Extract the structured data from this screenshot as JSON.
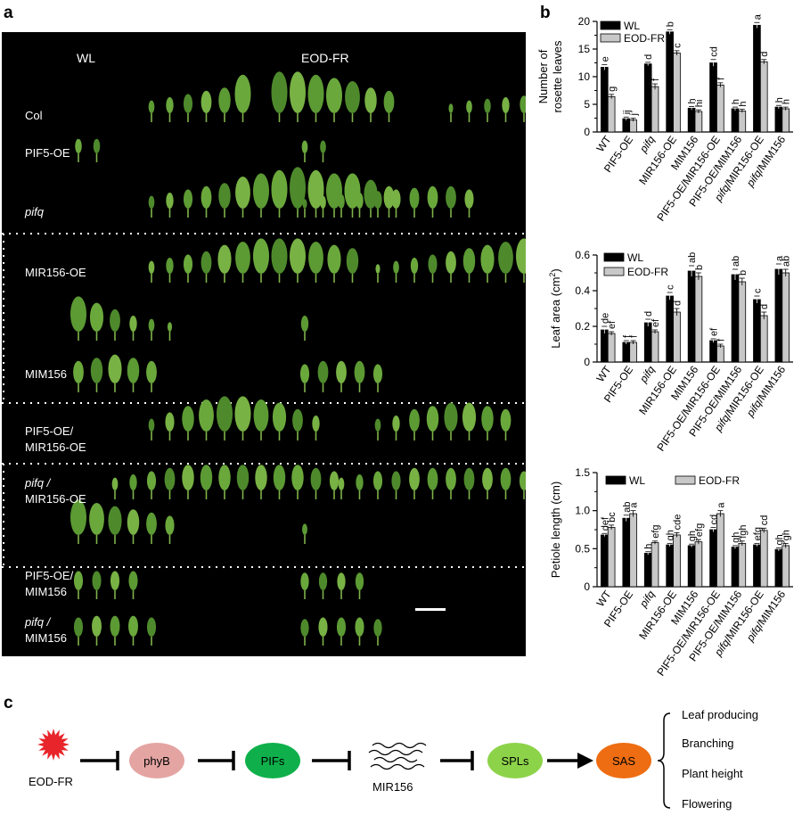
{
  "panels": {
    "a": "a",
    "b": "b",
    "c": "c"
  },
  "photo": {
    "col_wl": "WL",
    "col_eod": "EOD-FR",
    "rows": [
      {
        "lines": [
          "Col"
        ],
        "italic": false
      },
      {
        "lines": [
          "PIF5-OE"
        ],
        "italic": false
      },
      {
        "lines": [
          "pifq"
        ],
        "italic": true
      },
      {
        "lines": [
          "MIR156-OE"
        ],
        "italic": false
      },
      {
        "lines": [
          "MIM156"
        ],
        "italic": false
      },
      {
        "lines": [
          "PIF5-OE/",
          "MIR156-OE"
        ],
        "italic": false
      },
      {
        "lines": [
          "pifq /",
          "MIR156-OE"
        ],
        "italic": "first"
      },
      {
        "lines": [
          "PIF5-OE/",
          "MIM156"
        ],
        "italic": false
      },
      {
        "lines": [
          "pifq /",
          "MIM156"
        ],
        "italic": "first"
      }
    ],
    "leaves": [
      {
        "y": 125,
        "wl": [
          4,
          5,
          6,
          7,
          8,
          9,
          11,
          12,
          13,
          14,
          15,
          16,
          17
        ],
        "wl_sz": [
          8,
          10,
          12,
          14,
          16,
          24,
          26,
          26,
          24,
          22,
          20,
          16,
          14
        ],
        "eod": [
          8,
          9,
          10,
          11,
          12,
          13,
          14,
          15,
          16
        ],
        "eod_sz": [
          6,
          8,
          9,
          10,
          11,
          12,
          13,
          13,
          12
        ]
      },
      {
        "y": 170,
        "wl": [
          0,
          1
        ],
        "wl_sz": [
          9,
          9
        ],
        "eod": [
          0,
          1
        ],
        "eod_sz": [
          8,
          8
        ]
      },
      {
        "y": 232,
        "wl": [
          4,
          5,
          6,
          7,
          8,
          9,
          10,
          11,
          12,
          13,
          14,
          15,
          16,
          17
        ],
        "wl_sz": [
          8,
          10,
          12,
          14,
          16,
          20,
          22,
          24,
          26,
          24,
          22,
          22,
          18,
          14
        ],
        "eod": [
          0,
          1,
          2,
          3,
          4,
          5,
          6,
          7,
          8,
          9
        ],
        "eod_sz": [
          6,
          8,
          9,
          10,
          11,
          12,
          13,
          14,
          14,
          12
        ]
      },
      {
        "y": 305,
        "wl": [
          4,
          5,
          6,
          7,
          8,
          9,
          10,
          11,
          12,
          13,
          14,
          15
        ],
        "wl_sz": [
          8,
          10,
          12,
          14,
          18,
          20,
          22,
          22,
          22,
          20,
          18,
          16
        ],
        "eod": [
          4,
          5,
          6,
          7,
          8,
          9,
          10,
          11,
          12,
          13,
          14,
          15,
          16
        ],
        "eod_sz": [
          6,
          8,
          10,
          12,
          14,
          16,
          18,
          20,
          22,
          22,
          20,
          18,
          14
        ]
      },
      {
        "y": 370,
        "wl": [
          0,
          1,
          2,
          3,
          4,
          5
        ],
        "wl_sz": [
          22,
          18,
          14,
          10,
          8,
          6
        ],
        "eod": [
          0
        ],
        "eod_sz": [
          10
        ]
      },
      {
        "y": 428,
        "wl": [
          0,
          1,
          2,
          3,
          4
        ],
        "wl_sz": [
          14,
          16,
          18,
          16,
          14
        ],
        "eod": [
          0,
          1,
          2,
          3,
          4
        ],
        "eod_sz": [
          12,
          14,
          14,
          14,
          12
        ]
      },
      {
        "y": 482,
        "wl": [
          4,
          5,
          6,
          7,
          8,
          9,
          10,
          11,
          12,
          13
        ],
        "wl_sz": [
          8,
          12,
          16,
          20,
          22,
          22,
          20,
          18,
          14,
          10
        ],
        "eod": [
          4,
          5,
          6,
          7,
          8,
          9,
          10,
          11
        ],
        "eod_sz": [
          8,
          10,
          14,
          16,
          18,
          18,
          16,
          14
        ]
      },
      {
        "y": 548,
        "wl": [
          2,
          3,
          4,
          5,
          6,
          7,
          8,
          9,
          10,
          11,
          12,
          13,
          14
        ],
        "wl_sz": [
          8,
          10,
          12,
          14,
          16,
          16,
          16,
          16,
          16,
          16,
          16,
          14,
          12
        ],
        "eod": [
          2,
          3,
          4,
          5,
          6,
          7,
          8,
          9,
          10,
          11,
          12,
          13
        ],
        "eod_sz": [
          8,
          10,
          12,
          12,
          14,
          14,
          14,
          14,
          14,
          14,
          12,
          10
        ]
      },
      {
        "y": 598,
        "wl": [
          0,
          1,
          2,
          3,
          4,
          5
        ],
        "wl_sz": [
          22,
          20,
          18,
          16,
          14,
          12
        ],
        "eod": [
          0
        ],
        "eod_sz": [
          7
        ]
      },
      {
        "y": 660,
        "wl": [
          0,
          1,
          2,
          3
        ],
        "wl_sz": [
          12,
          12,
          12,
          12
        ],
        "eod": [
          0,
          1,
          2,
          3
        ],
        "eod_sz": [
          11,
          11,
          11,
          11
        ]
      },
      {
        "y": 712,
        "wl": [
          0,
          1,
          2,
          3,
          4
        ],
        "wl_sz": [
          12,
          13,
          13,
          13,
          12
        ],
        "eod": [
          0,
          1,
          2,
          3,
          4
        ],
        "eod_sz": [
          11,
          12,
          12,
          12,
          11
        ]
      }
    ]
  },
  "legend": {
    "wl": "WL",
    "eod": "EOD-FR"
  },
  "chart_data": [
    {
      "type": "bar",
      "ylabel": [
        "Number of",
        "rosette leaves"
      ],
      "ylim": [
        0,
        20
      ],
      "yticks": [
        0,
        5,
        10,
        15,
        20
      ],
      "categories": [
        "WT",
        "PIF5-OE",
        "pifq",
        "MIR156-OE",
        "MIM156",
        "PIF5-OE/MIR156-OE",
        "PIF5-OE/MIM156",
        "pifq/MIR156-OE",
        "pifq/MIM156"
      ],
      "series": [
        {
          "name": "WL",
          "values": [
            11.7,
            2.4,
            12.3,
            18.1,
            4.3,
            12.5,
            4.2,
            19.3,
            4.5
          ],
          "errors": [
            0.5,
            0.3,
            0.3,
            0.4,
            0.3,
            0.6,
            0.3,
            0.5,
            0.3
          ],
          "letters": [
            "e",
            "ij",
            "d",
            "b",
            "h",
            "cd",
            "h",
            "a",
            "h"
          ]
        },
        {
          "name": "EOD-FR",
          "values": [
            6.4,
            2.2,
            8.2,
            14.3,
            3.7,
            8.5,
            3.8,
            12.7,
            4.2
          ],
          "errors": [
            0.4,
            0.3,
            0.5,
            0.4,
            0.3,
            0.4,
            0.3,
            0.4,
            0.3
          ],
          "letters": [
            "g",
            "j",
            "f",
            "c",
            "hi",
            "f",
            "h",
            "d",
            "h"
          ]
        }
      ]
    },
    {
      "type": "bar",
      "ylabel": [
        "Leaf area (cm",
        "2",
        ")"
      ],
      "ylim": [
        0,
        0.6
      ],
      "yticks": [
        0,
        0.2,
        0.4,
        0.6
      ],
      "categories": [
        "WT",
        "PIF5-OE",
        "pifq",
        "MIR156-OE",
        "MIM156",
        "PIF5-OE/MIR156-OE",
        "PIF5-OE/MIM156",
        "pifq/MIR156-OE",
        "pifq/MIM156"
      ],
      "series": [
        {
          "name": "WL",
          "values": [
            0.18,
            0.11,
            0.22,
            0.37,
            0.51,
            0.12,
            0.49,
            0.35,
            0.52
          ],
          "errors": [
            0.02,
            0.01,
            0.02,
            0.02,
            0.03,
            0.01,
            0.03,
            0.02,
            0.03
          ],
          "letters": [
            "de",
            "f",
            "d",
            "c",
            "ab",
            "ef",
            "ab",
            "c",
            "a"
          ]
        },
        {
          "name": "EOD-FR",
          "values": [
            0.16,
            0.11,
            0.17,
            0.28,
            0.48,
            0.09,
            0.45,
            0.26,
            0.5
          ],
          "errors": [
            0.01,
            0.01,
            0.01,
            0.02,
            0.02,
            0.01,
            0.02,
            0.02,
            0.02
          ],
          "letters": [
            "ef",
            "f",
            "ef",
            "d",
            "b",
            "f",
            "b",
            "d",
            "ab"
          ]
        }
      ]
    },
    {
      "type": "bar",
      "ylabel": [
        "Petiole length (cm)"
      ],
      "ylim": [
        0,
        1.5
      ],
      "yticks": [
        0,
        0.5,
        1.0,
        1.5
      ],
      "categories": [
        "WT",
        "PIF5-OE",
        "pifq",
        "MIR156-OE",
        "MIM156",
        "PIF5-OE/MIR156-OE",
        "PIF5-OE/MIM156",
        "pifq/MIR156-OE",
        "pifq/MIM156"
      ],
      "series": [
        {
          "name": "WL",
          "values": [
            0.68,
            0.9,
            0.44,
            0.55,
            0.54,
            0.75,
            0.52,
            0.55,
            0.49
          ],
          "errors": [
            0.02,
            0.04,
            0.02,
            0.02,
            0.02,
            0.03,
            0.02,
            0.02,
            0.02
          ],
          "letters": [
            "def",
            "ab",
            "h",
            "gh",
            "gh",
            "cd",
            "gh",
            "efg",
            "gh"
          ]
        },
        {
          "name": "EOD-FR",
          "values": [
            0.78,
            0.96,
            0.58,
            0.68,
            0.59,
            0.96,
            0.57,
            0.74,
            0.54
          ],
          "errors": [
            0.03,
            0.04,
            0.02,
            0.03,
            0.03,
            0.04,
            0.03,
            0.03,
            0.03
          ],
          "letters": [
            "bc",
            "a",
            "efg",
            "cde",
            "efg",
            "a",
            "fgh",
            "cd",
            "gh"
          ]
        }
      ]
    }
  ],
  "pathway": {
    "eod": "EOD-FR",
    "phyb": "phyB",
    "pifs": "PIFs",
    "mir": "MIR156",
    "spls": "SPLs",
    "sas": "SAS",
    "outcomes": [
      "Leaf producing",
      "Branching",
      "Plant height",
      "Flowering"
    ],
    "colors": {
      "star": "#e8252a",
      "phyb": "#e4a4a2",
      "pifs": "#0fb04b",
      "spls": "#8dd34a",
      "sas": "#ee6d12"
    }
  }
}
